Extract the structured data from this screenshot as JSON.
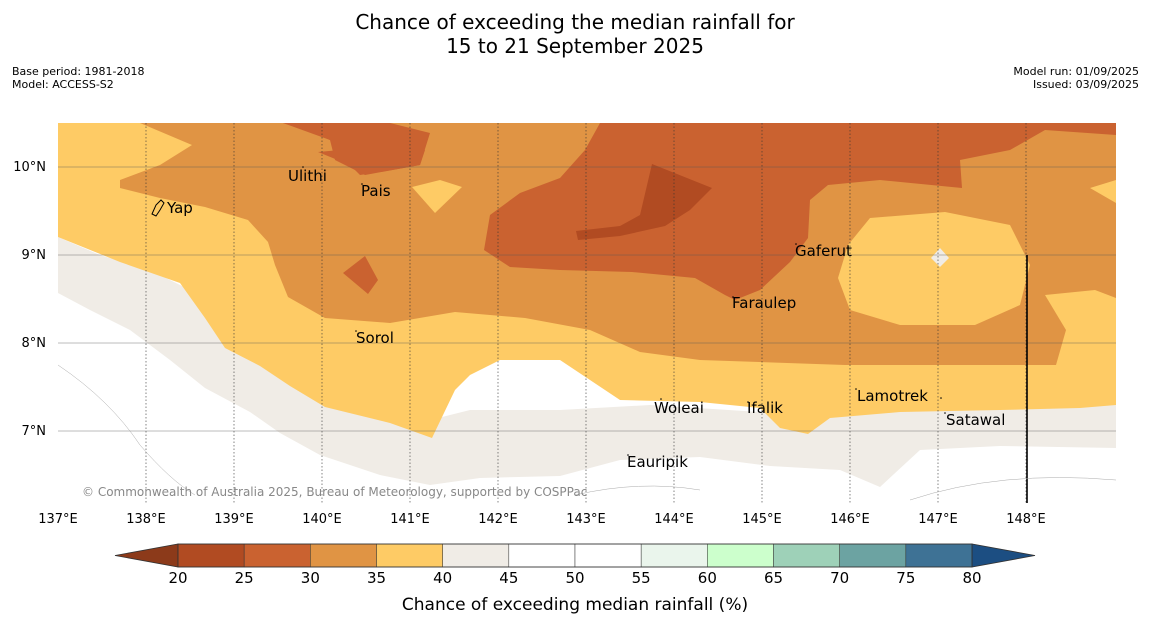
{
  "header": {
    "title_line1": "Chance of exceeding the median rainfall for",
    "title_line2": "15 to 21 September 2025",
    "base_period": "Base period: 1981-2018",
    "model": "Model: ACCESS-S2",
    "model_run": "Model run: 01/09/2025",
    "issued": "Issued: 03/09/2025"
  },
  "map": {
    "lon_labels": [
      "137°E",
      "138°E",
      "139°E",
      "140°E",
      "141°E",
      "142°E",
      "143°E",
      "144°E",
      "145°E",
      "146°E",
      "147°E",
      "148°E"
    ],
    "lat_labels": [
      "10°N",
      "9°N",
      "8°N",
      "7°N"
    ],
    "places": [
      {
        "name": "Yap"
      },
      {
        "name": "Ulithi"
      },
      {
        "name": "Pais"
      },
      {
        "name": "Gaferut"
      },
      {
        "name": "Faraulep"
      },
      {
        "name": "Sorol"
      },
      {
        "name": "Woleai"
      },
      {
        "name": "Ifalik"
      },
      {
        "name": "Lamotrek"
      },
      {
        "name": "Satawal"
      },
      {
        "name": "Eauripik"
      }
    ],
    "copyright": "© Commonwealth of Australia 2025, Bureau of Meteorology, supported by COSPPac"
  },
  "legend": {
    "ticks": [
      "20",
      "25",
      "30",
      "35",
      "40",
      "45",
      "50",
      "55",
      "60",
      "65",
      "70",
      "75",
      "80"
    ],
    "colors": {
      "below_20": "#8c3a1a",
      "c20_25": "#b14b22",
      "c25_30": "#ca6230",
      "c30_35": "#e09444",
      "c35_40": "#fecb65",
      "c40_45": "#f0ece6",
      "c45_50": "#ffffff",
      "c50_55": "#ffffff",
      "c55_60": "#eaf5ec",
      "c60_65": "#ccffcc",
      "c65_70": "#9ed1b8",
      "c70_75": "#6ca3a2",
      "c75_80": "#3e7295",
      "above_80": "#1c4e82"
    },
    "label": "Chance of exceeding median rainfall (%)"
  }
}
